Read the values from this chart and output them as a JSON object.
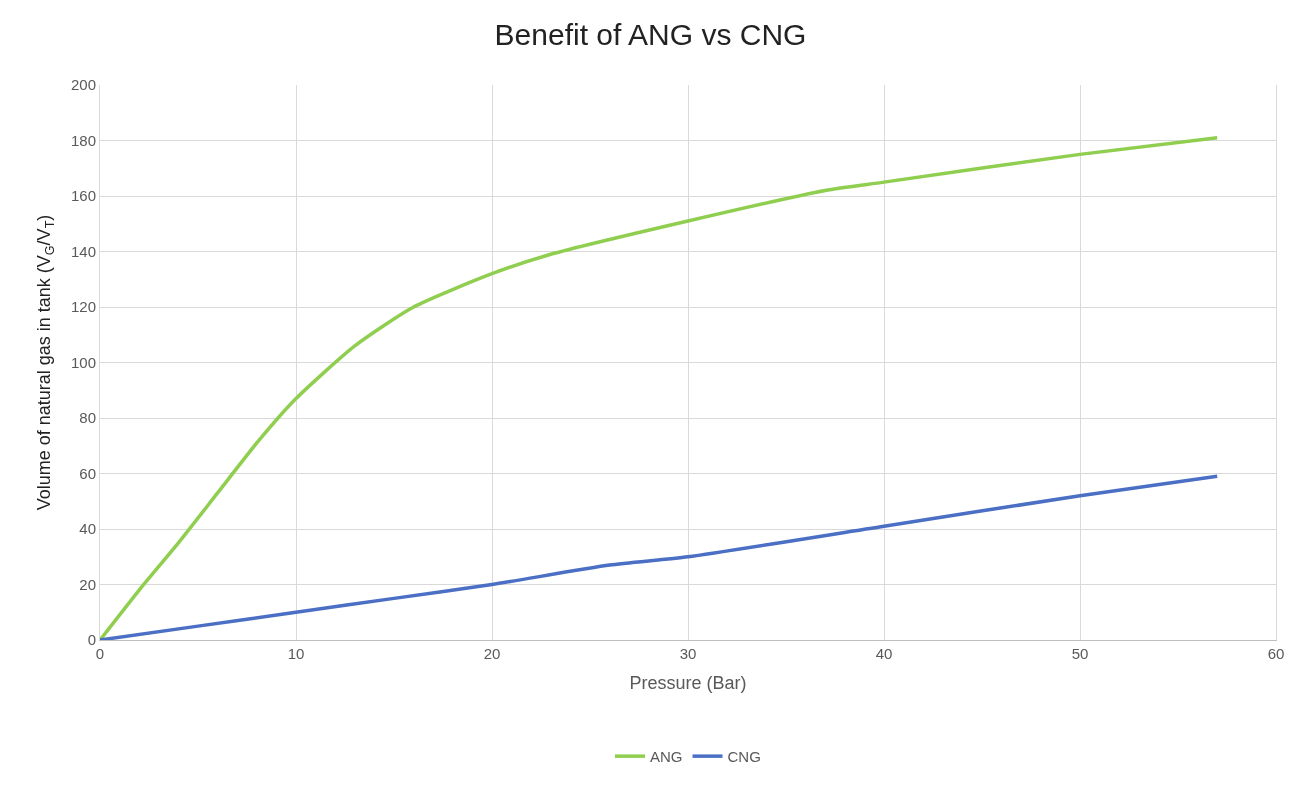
{
  "chart_data": {
    "type": "line",
    "title": "Benefit of ANG vs CNG",
    "xlabel": "Pressure (Bar)",
    "ylabel": "Volume of natural gas in tank (V$_{G}$/V$_{T}$)",
    "xlim": [
      0,
      60
    ],
    "xticks": [
      0,
      10,
      20,
      30,
      40,
      50,
      60
    ],
    "ylim": [
      0,
      200
    ],
    "yticks": [
      0,
      20,
      40,
      60,
      80,
      100,
      120,
      140,
      160,
      180,
      200
    ],
    "grid": true,
    "legend": "bottom",
    "marker": "none",
    "line_style": "solid",
    "series": [
      {
        "name": "ANG",
        "color": "#8fce4f",
        "x": [
          0,
          2,
          4,
          6,
          8,
          10,
          13,
          16,
          20,
          23,
          30,
          37,
          40,
          50,
          57
        ],
        "values": [
          0,
          18,
          35,
          53,
          71,
          87,
          106,
          120,
          132,
          139,
          151,
          162,
          165,
          175,
          181
        ]
      },
      {
        "name": "CNG",
        "color": "#4a6fc4",
        "x": [
          0,
          5,
          10,
          15,
          20,
          26,
          30,
          40,
          50,
          57
        ],
        "values": [
          0,
          5,
          10,
          15,
          20,
          27,
          30,
          41,
          52,
          59
        ]
      }
    ]
  }
}
